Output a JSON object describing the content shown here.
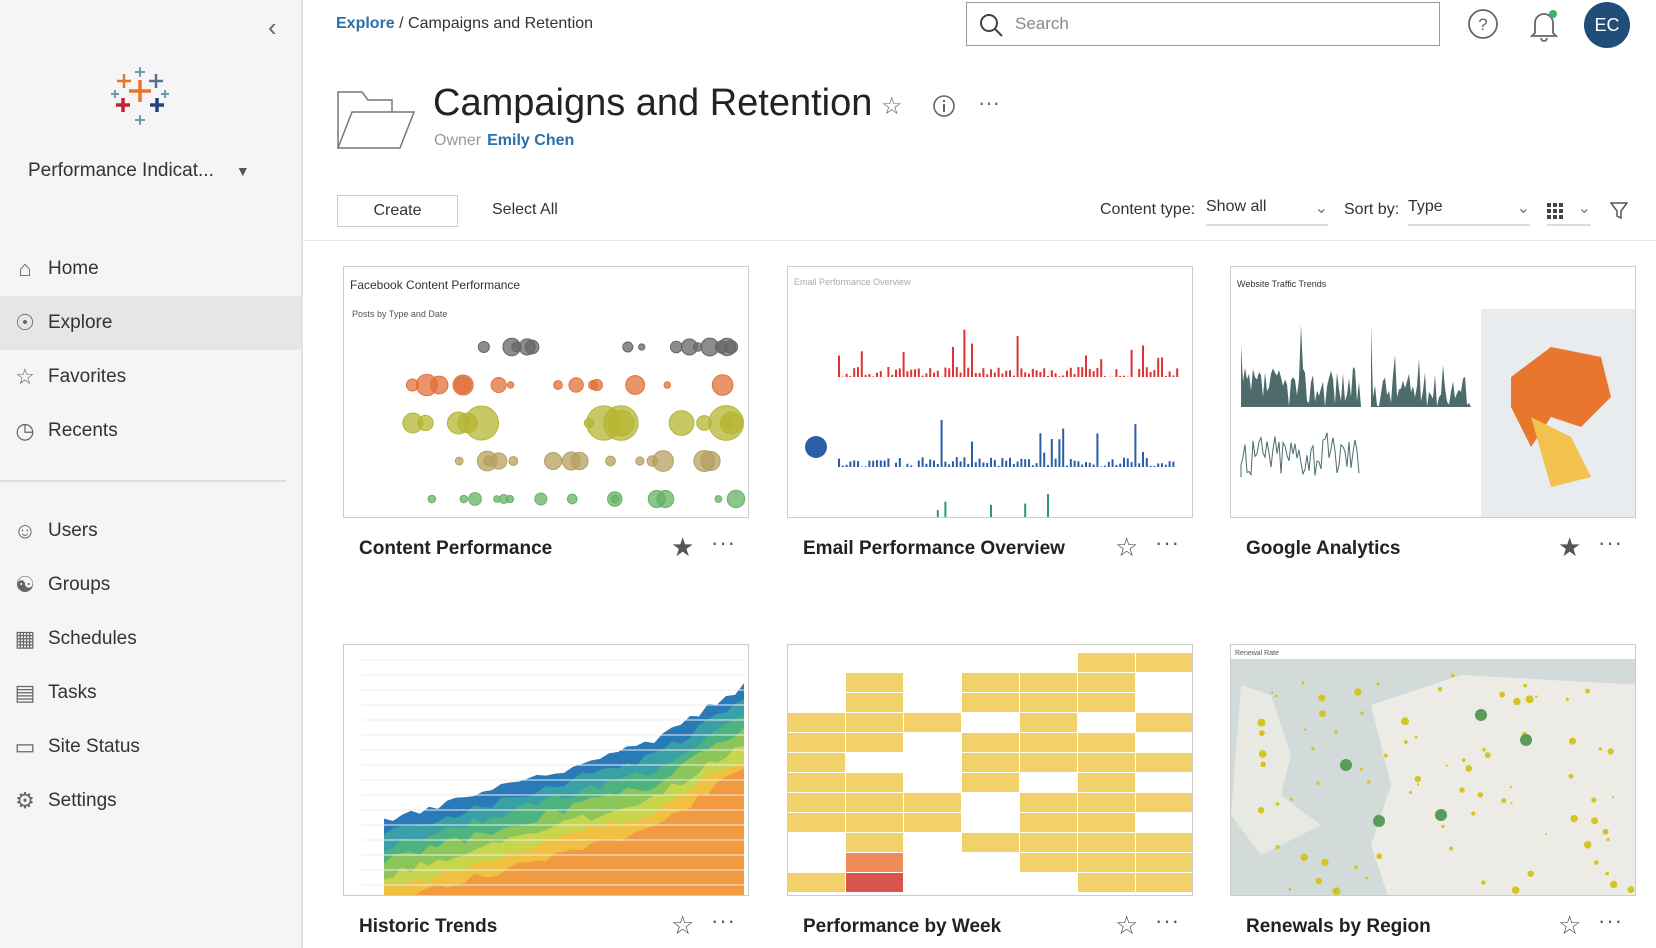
{
  "sidebar": {
    "site_name": "Performance Indicat...",
    "items": [
      {
        "label": "Home",
        "icon": "home-icon"
      },
      {
        "label": "Explore",
        "icon": "compass-icon",
        "active": true
      },
      {
        "label": "Favorites",
        "icon": "star-icon"
      },
      {
        "label": "Recents",
        "icon": "clock-icon"
      },
      {
        "label": "Users",
        "icon": "users-icon"
      },
      {
        "label": "Groups",
        "icon": "groups-icon"
      },
      {
        "label": "Schedules",
        "icon": "calendar-icon"
      },
      {
        "label": "Tasks",
        "icon": "tasks-icon"
      },
      {
        "label": "Site Status",
        "icon": "site-status-icon"
      },
      {
        "label": "Settings",
        "icon": "gear-icon"
      }
    ]
  },
  "header": {
    "breadcrumb": {
      "root": "Explore",
      "sep": "/",
      "current": "Campaigns and Retention"
    },
    "search_placeholder": "Search",
    "avatar": "EC"
  },
  "project": {
    "title": "Campaigns and Retention",
    "owner_label": "Owner",
    "owner": "Emily Chen",
    "more": "···"
  },
  "toolbar": {
    "create": "Create",
    "select_all": "Select All",
    "content_type_label": "Content type:",
    "content_type": "Show all",
    "sort_label": "Sort by:",
    "sort": "Type"
  },
  "cards": [
    {
      "title": "Content Performance",
      "favorite": true,
      "thumb_title": "Facebook Content Performance",
      "thumb_sub": "Posts by Type and Date"
    },
    {
      "title": "Email Performance Overview",
      "favorite": false,
      "thumb_title": "Email Performance Overview"
    },
    {
      "title": "Google Analytics",
      "favorite": true,
      "thumb_title": "Website Traffic Trends"
    },
    {
      "title": "Historic Trends",
      "favorite": false
    },
    {
      "title": "Performance by Week",
      "favorite": false
    },
    {
      "title": "Renewals by Region",
      "favorite": false,
      "thumb_title": "Renewal Rate"
    }
  ],
  "more_label": "···",
  "colors": {
    "accent": "#2a6fa8",
    "avatar": "#1f4e79"
  }
}
